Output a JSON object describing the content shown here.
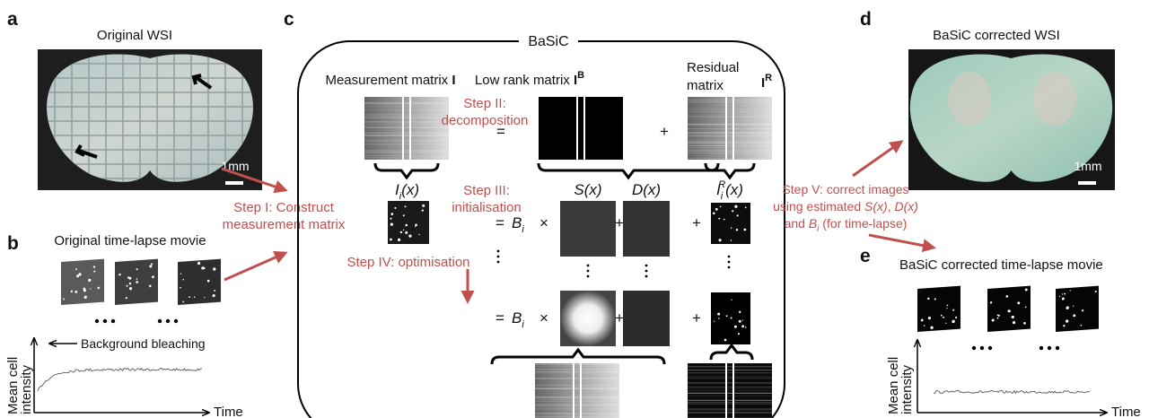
{
  "panel_a": {
    "label": "a",
    "title": "Original WSI",
    "scale_bar": "1mm"
  },
  "panel_b": {
    "label": "b",
    "title": "Original time-lapse movie",
    "annotation": "Background bleaching",
    "y_axis_label": [
      "Mean cell",
      "intensity"
    ],
    "x_axis_label": "Time"
  },
  "panel_c": {
    "label": "c",
    "title": "BaSiC",
    "step_1": [
      "Step I: Construct",
      "measurement matrix"
    ],
    "measurement_matrix": {
      "text": "Measurement matrix ",
      "symbol": "I"
    },
    "low_rank_matrix": {
      "text": "Low rank matrix ",
      "symbol": "I",
      "superscript": "B"
    },
    "residual_matrix": {
      "text": [
        "Residual",
        "matrix"
      ],
      "symbol": "I",
      "superscript": "R"
    },
    "step_2": [
      "Step II:",
      "decomposition"
    ],
    "step_3": [
      "Step III:",
      "initialisation"
    ],
    "step_4": "Step IV: optimisation",
    "image_label": {
      "base": "I",
      "subscript": "i",
      "rest": "(x)"
    },
    "flatfield_label": "S(x)",
    "darkfield_label": "D(x)",
    "residual_label": {
      "base": "I",
      "subscript": "i",
      "superscript": "R",
      "rest": "(x)"
    },
    "baseline": {
      "base": "B",
      "subscript": "i"
    },
    "operators": {
      "equals": "=",
      "plus": "+",
      "times": "×"
    }
  },
  "panel_d": {
    "label": "d",
    "title": "BaSiC corrected WSI",
    "scale_bar": "1mm",
    "step_5": {
      "line1": "Step V: correct images",
      "line2": [
        "using estimated ",
        "S(x)",
        ", ",
        "D(x)"
      ],
      "line3": [
        "and ",
        "B",
        "i",
        " (for time-lapse)"
      ]
    }
  },
  "panel_e": {
    "label": "e",
    "title": "BaSiC corrected time-lapse movie",
    "y_axis_label": [
      "Mean cell",
      "intensity"
    ],
    "x_axis_label": "Time"
  }
}
